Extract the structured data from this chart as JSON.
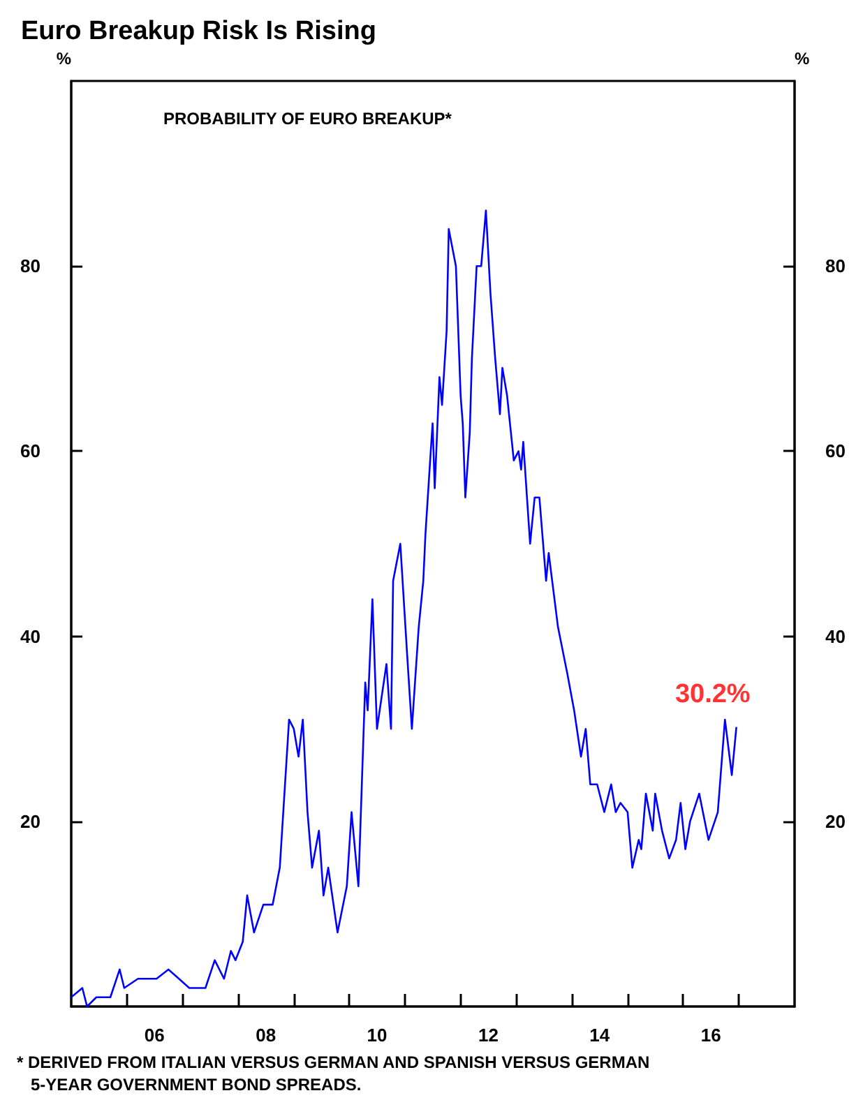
{
  "chart_data": {
    "type": "line",
    "title": "Euro Breakup Risk Is Rising",
    "subtitle": "PROBABILITY OF EURO BREAKUP*",
    "ylabel": "%",
    "y2label": "%",
    "x": [
      "2005-01-01",
      "2005-03-15",
      "2005-04-15",
      "2005-06-15",
      "2005-09-15",
      "2005-11-15",
      "2005-12-15",
      "2006-03-15",
      "2006-07-15",
      "2006-10-01",
      "2007-02-15",
      "2007-06-01",
      "2007-08-01",
      "2007-10-01",
      "2007-11-15",
      "2007-12-15",
      "2008-02-01",
      "2008-03-01",
      "2008-04-15",
      "2008-06-15",
      "2008-08-15",
      "2008-10-01",
      "2008-12-01",
      "2009-01-01",
      "2009-02-01",
      "2009-03-01",
      "2009-04-01",
      "2009-05-01",
      "2009-06-15",
      "2009-07-15",
      "2009-08-15",
      "2009-10-15",
      "2009-12-15",
      "2010-01-15",
      "2010-03-01",
      "2010-04-15",
      "2010-05-01",
      "2010-06-01",
      "2010-07-01",
      "2010-09-01",
      "2010-10-01",
      "2010-10-15",
      "2010-12-01",
      "2011-01-15",
      "2011-02-15",
      "2011-04-01",
      "2011-05-01",
      "2011-05-15",
      "2011-06-15",
      "2011-07-01",
      "2011-07-15",
      "2011-08-15",
      "2011-09-01",
      "2011-10-01",
      "2011-10-15",
      "2011-12-01",
      "2012-01-01",
      "2012-01-15",
      "2012-02-01",
      "2012-03-01",
      "2012-03-15",
      "2012-04-15",
      "2012-05-15",
      "2012-06-15",
      "2012-07-15",
      "2012-08-15",
      "2012-09-15",
      "2012-10-01",
      "2012-11-01",
      "2012-12-15",
      "2013-01-15",
      "2013-02-01",
      "2013-02-15",
      "2013-04-01",
      "2013-05-01",
      "2013-06-01",
      "2013-07-15",
      "2013-08-01",
      "2013-10-01",
      "2013-12-01",
      "2014-01-15",
      "2014-03-01",
      "2014-04-01",
      "2014-05-01",
      "2014-06-15",
      "2014-08-01",
      "2014-09-15",
      "2014-10-15",
      "2014-11-15",
      "2015-01-01",
      "2015-02-01",
      "2015-03-15",
      "2015-04-01",
      "2015-05-01",
      "2015-06-15",
      "2015-07-01",
      "2015-08-15",
      "2015-10-01",
      "2015-11-15",
      "2015-12-15",
      "2016-01-15",
      "2016-02-15",
      "2016-04-15",
      "2016-06-15",
      "2016-08-15",
      "2016-10-01",
      "2016-11-15",
      "2016-12-15"
    ],
    "series": [
      {
        "color": "#0000ff",
        "values": [
          1,
          2,
          0,
          1,
          1,
          4,
          2,
          3,
          3,
          4,
          2,
          2,
          5,
          3,
          6,
          5,
          7,
          12,
          8,
          11,
          11,
          15,
          31,
          30,
          27,
          31,
          21,
          15,
          19,
          12,
          15,
          8,
          13,
          21,
          13,
          35,
          32,
          44,
          30,
          37,
          30,
          46,
          50,
          38,
          30,
          41,
          46,
          51,
          59,
          63,
          56,
          68,
          65,
          73,
          84,
          80,
          66,
          63,
          55,
          62,
          70,
          80,
          80,
          86,
          77,
          70,
          64,
          69,
          66,
          59,
          60,
          58,
          61,
          50,
          55,
          55,
          46,
          49,
          41,
          36,
          32,
          27,
          30,
          24,
          24,
          21,
          24,
          21,
          22,
          21,
          15,
          18,
          17,
          23,
          19,
          23,
          19,
          16,
          18,
          22,
          17,
          20,
          23,
          18,
          21,
          31,
          25,
          30.2
        ]
      }
    ],
    "xlim": [
      "2005",
      "2018"
    ],
    "xticks": [
      {
        "value": "2006",
        "label": null
      },
      {
        "value": "2007",
        "label": null
      },
      {
        "value": "2008",
        "label": null
      },
      {
        "value": "2009",
        "label": null
      },
      {
        "value": "2010",
        "label": null
      },
      {
        "value": "2011",
        "label": null
      },
      {
        "value": "2012",
        "label": null
      },
      {
        "value": "2013",
        "label": null
      },
      {
        "value": "2014",
        "label": null
      },
      {
        "value": "2015",
        "label": null
      },
      {
        "value": "2016",
        "label": null
      },
      {
        "value": "2017",
        "label": null
      },
      {
        "value": "2006-07",
        "label": "06"
      },
      {
        "value": "2008-07",
        "label": "08"
      },
      {
        "value": "2010-07",
        "label": "10"
      },
      {
        "value": "2012-07",
        "label": "12"
      },
      {
        "value": "2014-07",
        "label": "14"
      },
      {
        "value": "2016-07",
        "label": "16"
      }
    ],
    "ylim": [
      0,
      100
    ],
    "yticks": [
      20,
      40,
      60,
      80
    ],
    "y2lim": [
      0,
      100
    ],
    "y2ticks": [
      20,
      40,
      60,
      80
    ],
    "marker": "none",
    "annotations": [
      {
        "text": "30.2%",
        "x": "2016-12-15",
        "y": 30.2
      },
      "* DERIVED FROM ITALIAN VERSUS GERMAN AND SPANISH VERSUS GERMAN\n5-YEAR GOVERNMENT BOND SPREADS."
    ]
  }
}
